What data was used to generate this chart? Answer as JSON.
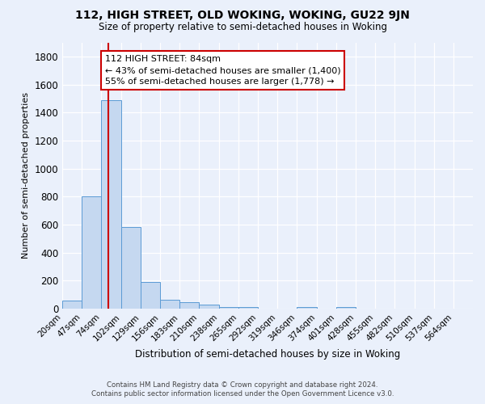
{
  "title": "112, HIGH STREET, OLD WOKING, WOKING, GU22 9JN",
  "subtitle": "Size of property relative to semi-detached houses in Woking",
  "xlabel": "Distribution of semi-detached houses by size in Woking",
  "ylabel": "Number of semi-detached properties",
  "bar_values": [
    55,
    800,
    1490,
    580,
    190,
    65,
    45,
    30,
    10,
    10,
    0,
    0,
    10,
    0,
    10,
    0,
    0,
    0,
    0,
    0
  ],
  "bin_labels": [
    "20sqm",
    "47sqm",
    "74sqm",
    "102sqm",
    "129sqm",
    "156sqm",
    "183sqm",
    "210sqm",
    "238sqm",
    "265sqm",
    "292sqm",
    "319sqm",
    "346sqm",
    "374sqm",
    "401sqm",
    "428sqm",
    "455sqm",
    "482sqm",
    "510sqm",
    "537sqm",
    "564sqm"
  ],
  "bar_color": "#c5d8f0",
  "bar_edge_color": "#5b9bd5",
  "background_color": "#eaf0fb",
  "grid_color": "#ffffff",
  "ylim": [
    0,
    1900
  ],
  "yticks": [
    0,
    200,
    400,
    600,
    800,
    1000,
    1200,
    1400,
    1600,
    1800
  ],
  "property_line_x": 84,
  "property_line_color": "#cc0000",
  "annotation_title": "112 HIGH STREET: 84sqm",
  "annotation_line1": "← 43% of semi-detached houses are smaller (1,400)",
  "annotation_line2": "55% of semi-detached houses are larger (1,778) →",
  "annotation_box_color": "#ffffff",
  "annotation_box_edge": "#cc0000",
  "footer_line1": "Contains HM Land Registry data © Crown copyright and database right 2024.",
  "footer_line2": "Contains public sector information licensed under the Open Government Licence v3.0.",
  "bin_edges": [
    20,
    47,
    74,
    102,
    129,
    156,
    183,
    210,
    238,
    265,
    292,
    319,
    346,
    374,
    401,
    428,
    455,
    482,
    510,
    537,
    564,
    591
  ]
}
